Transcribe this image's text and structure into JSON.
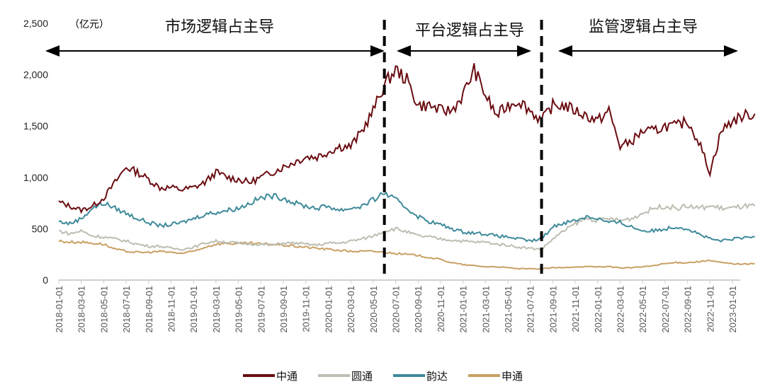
{
  "chart_data": {
    "type": "line",
    "unit_label": "（亿元）",
    "ylim": [
      0,
      2500
    ],
    "yticks": [
      0,
      500,
      1000,
      1500,
      2000,
      2500
    ],
    "ytick_labels": [
      "0",
      "500",
      "1,000",
      "1,500",
      "2,000",
      "2,500"
    ],
    "x_start": "2018-01",
    "xtick_labels": [
      "2018-01-01",
      "2018-03-01",
      "2018-05-01",
      "2018-07-01",
      "2018-09-01",
      "2018-11-01",
      "2019-01-01",
      "2019-03-01",
      "2019-05-01",
      "2019-07-01",
      "2019-09-01",
      "2019-11-01",
      "2020-01-01",
      "2020-03-01",
      "2020-05-01",
      "2020-07-01",
      "2020-09-01",
      "2020-11-01",
      "2021-01-01",
      "2021-03-01",
      "2021-05-01",
      "2021-07-01",
      "2021-09-01",
      "2021-11-01",
      "2022-01-01",
      "2022-03-01",
      "2022-05-01",
      "2022-07-01",
      "2022-09-01",
      "2022-11-01",
      "2023-01-01"
    ],
    "grid": false,
    "legend": "bottom",
    "series": [
      {
        "name": "中通",
        "color": "#6b0d12",
        "values": [
          760,
          720,
          680,
          720,
          800,
          950,
          1100,
          1050,
          980,
          900,
          900,
          880,
          900,
          950,
          1050,
          1000,
          980,
          950,
          1000,
          1050,
          1100,
          1150,
          1200,
          1200,
          1250,
          1300,
          1300,
          1450,
          1650,
          1900,
          2050,
          1950,
          1700,
          1700,
          1650,
          1650,
          1800,
          2050,
          1800,
          1600,
          1700,
          1750,
          1650,
          1550,
          1700,
          1700,
          1650,
          1600,
          1550,
          1650,
          1300,
          1350,
          1450,
          1450,
          1500,
          1500,
          1550,
          1350,
          1050,
          1450,
          1550,
          1600,
          1620
        ]
      },
      {
        "name": "圆通",
        "color": "#bdbdb2",
        "values": [
          480,
          450,
          480,
          430,
          420,
          400,
          380,
          350,
          330,
          330,
          310,
          300,
          320,
          360,
          380,
          370,
          360,
          350,
          350,
          340,
          360,
          360,
          350,
          340,
          360,
          360,
          380,
          400,
          430,
          480,
          500,
          470,
          430,
          420,
          400,
          390,
          380,
          370,
          370,
          350,
          340,
          320,
          310,
          300,
          400,
          480,
          550,
          600,
          580,
          600,
          580,
          600,
          650,
          700,
          720,
          700,
          720,
          700,
          720,
          700,
          700,
          720,
          720
        ]
      },
      {
        "name": "韵达",
        "color": "#3e8a9a",
        "values": [
          570,
          550,
          600,
          700,
          750,
          700,
          650,
          600,
          560,
          530,
          540,
          560,
          600,
          640,
          660,
          680,
          700,
          750,
          800,
          820,
          800,
          750,
          720,
          700,
          720,
          680,
          700,
          720,
          780,
          850,
          780,
          700,
          620,
          570,
          540,
          500,
          470,
          460,
          450,
          430,
          420,
          400,
          380,
          400,
          520,
          560,
          580,
          620,
          600,
          560,
          560,
          520,
          480,
          480,
          500,
          520,
          500,
          450,
          400,
          380,
          400,
          410,
          420
        ]
      },
      {
        "name": "申通",
        "color": "#c9a063",
        "values": [
          380,
          370,
          370,
          360,
          350,
          300,
          280,
          270,
          270,
          280,
          270,
          260,
          280,
          320,
          350,
          360,
          350,
          360,
          350,
          350,
          340,
          330,
          320,
          310,
          300,
          290,
          280,
          280,
          280,
          270,
          260,
          250,
          240,
          220,
          200,
          170,
          150,
          140,
          130,
          130,
          120,
          110,
          110,
          110,
          120,
          120,
          130,
          130,
          130,
          130,
          120,
          120,
          130,
          140,
          160,
          170,
          170,
          180,
          190,
          170,
          160,
          155,
          160
        ]
      }
    ],
    "annotations": [
      {
        "text": "市场逻辑占主导",
        "from": "2018-01",
        "to": "2020-06"
      },
      {
        "text": "平台逻辑占主导",
        "from": "2020-06",
        "to": "2021-08"
      },
      {
        "text": "监管逻辑占主导",
        "from": "2021-08",
        "to": "2023-03"
      }
    ],
    "dividers": [
      "2020-06",
      "2021-08"
    ]
  }
}
